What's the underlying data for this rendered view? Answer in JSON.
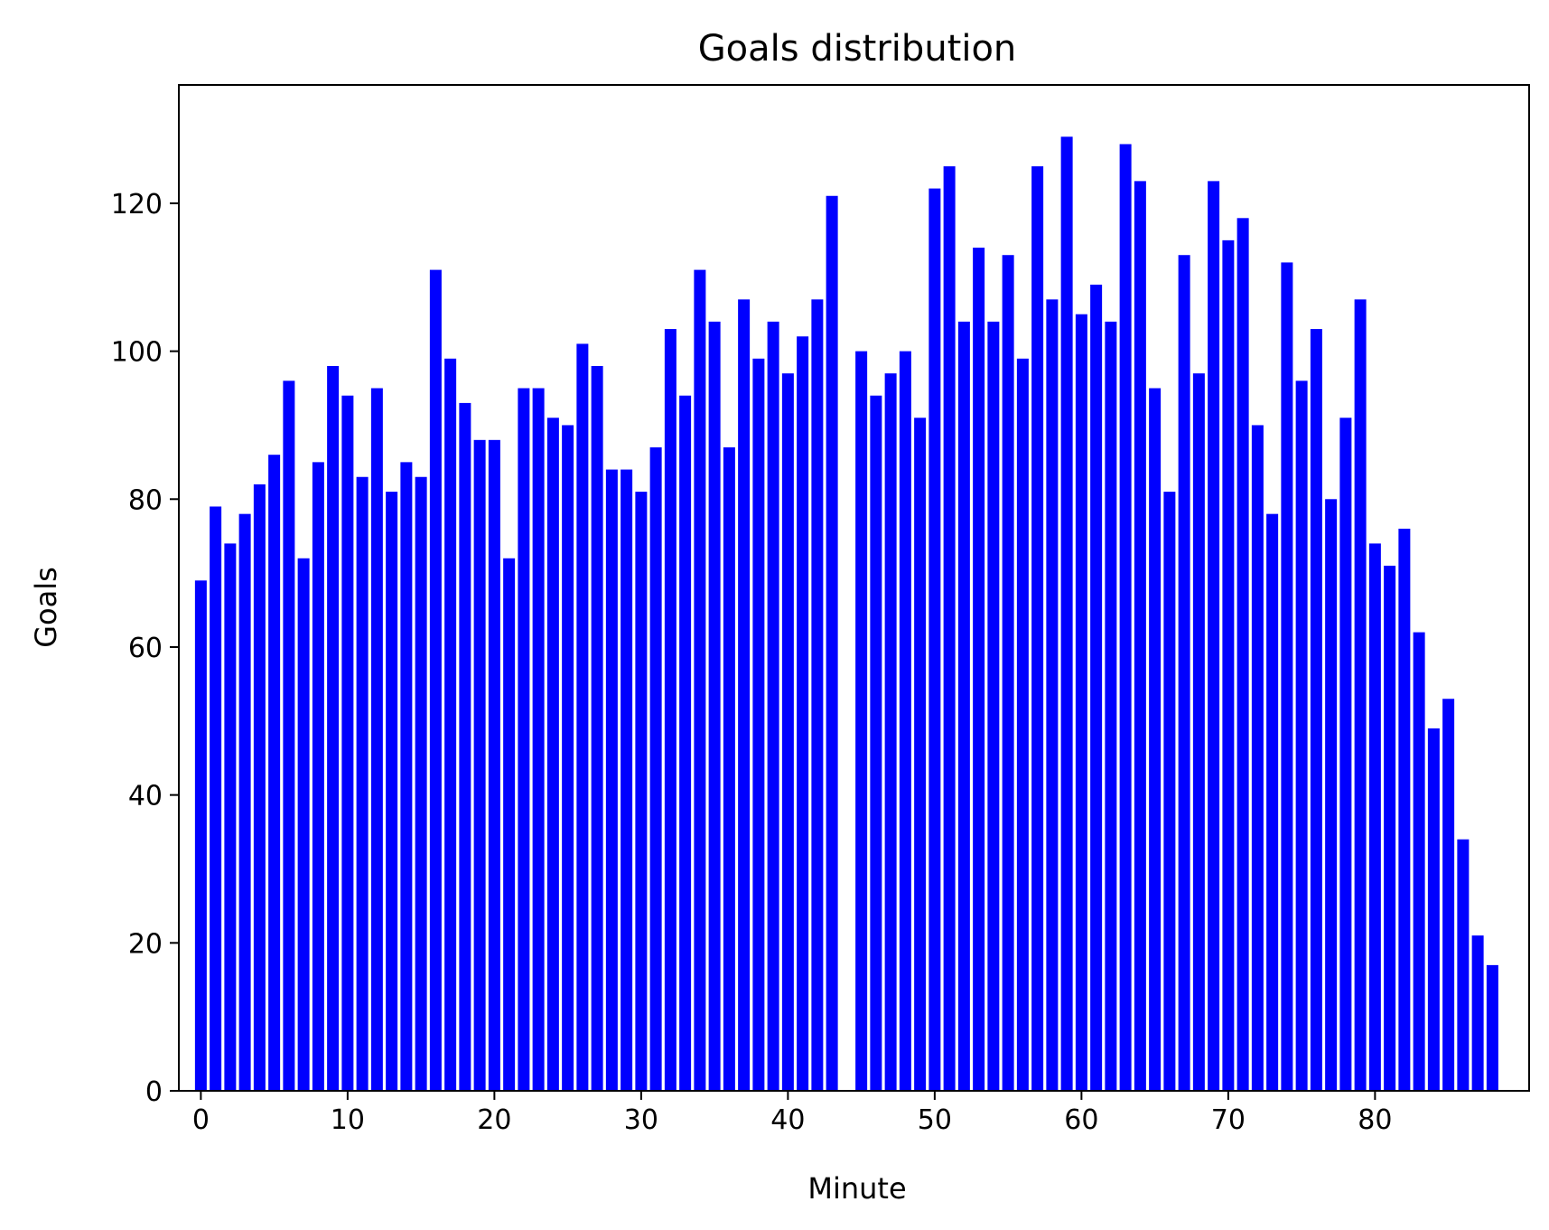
{
  "chart_data": {
    "type": "bar",
    "title": "Goals distribution",
    "xlabel": "Minute",
    "ylabel": "Goals",
    "xlim": [
      -1.5,
      90.5
    ],
    "ylim": [
      0,
      136
    ],
    "x_ticks": [
      0,
      10,
      20,
      30,
      40,
      50,
      60,
      70,
      80
    ],
    "y_ticks": [
      0,
      20,
      40,
      60,
      80,
      100,
      120
    ],
    "grid": false,
    "legend": "none",
    "bar_color": "#0000ff",
    "x": [
      0,
      1,
      2,
      3,
      4,
      5,
      6,
      7,
      8,
      9,
      10,
      11,
      12,
      13,
      14,
      15,
      16,
      17,
      18,
      19,
      20,
      21,
      22,
      23,
      24,
      25,
      26,
      27,
      28,
      29,
      30,
      31,
      32,
      33,
      34,
      35,
      36,
      37,
      38,
      39,
      40,
      41,
      42,
      43,
      45,
      46,
      47,
      48,
      49,
      50,
      51,
      52,
      53,
      54,
      55,
      56,
      57,
      58,
      59,
      60,
      61,
      62,
      63,
      64,
      65,
      66,
      67,
      68,
      69,
      70,
      71,
      72,
      73,
      74,
      75,
      76,
      77,
      78,
      79,
      80,
      81,
      82,
      83,
      84,
      85,
      86,
      87,
      88
    ],
    "values": [
      69,
      79,
      74,
      78,
      82,
      86,
      96,
      72,
      85,
      98,
      94,
      83,
      95,
      81,
      85,
      83,
      111,
      99,
      93,
      88,
      88,
      72,
      95,
      95,
      91,
      90,
      101,
      98,
      84,
      84,
      81,
      87,
      103,
      94,
      111,
      104,
      87,
      107,
      99,
      104,
      97,
      102,
      107,
      121,
      100,
      94,
      97,
      100,
      91,
      122,
      125,
      104,
      114,
      104,
      113,
      99,
      125,
      107,
      129,
      105,
      109,
      104,
      128,
      123,
      95,
      81,
      113,
      97,
      123,
      115,
      118,
      90,
      78,
      112,
      96,
      103,
      80,
      91,
      107,
      74,
      71,
      76,
      62,
      49,
      53,
      34,
      21,
      17
    ]
  }
}
